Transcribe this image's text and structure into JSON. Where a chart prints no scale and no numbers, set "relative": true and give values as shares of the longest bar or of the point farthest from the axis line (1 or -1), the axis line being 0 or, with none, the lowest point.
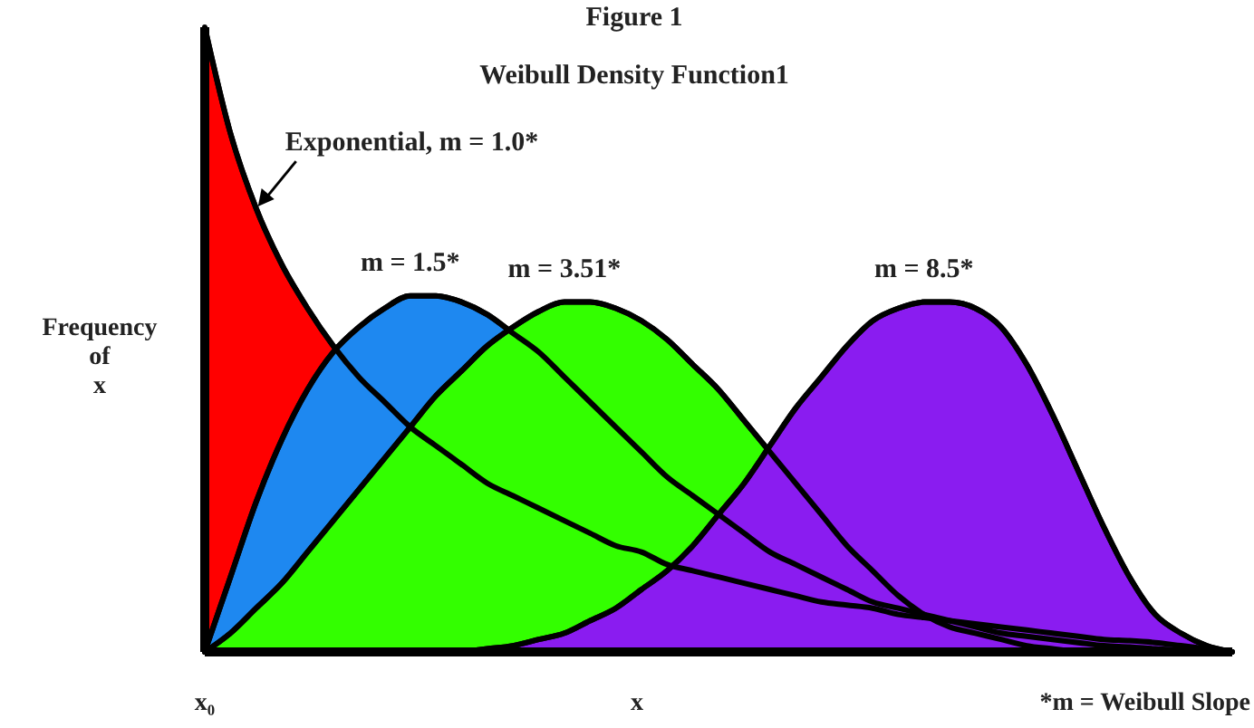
{
  "chart_data": {
    "type": "area",
    "title": "Figure 1",
    "subtitle": "Weibull Density Function1",
    "xlabel": "x",
    "ylabel": "Frequency of x",
    "relative": true,
    "categories": [
      null,
      null,
      null,
      null,
      null,
      null,
      null,
      null,
      null,
      null,
      null,
      null,
      null,
      null,
      null,
      null,
      null,
      null,
      null,
      null,
      null,
      null,
      null,
      null,
      null,
      null,
      null,
      null,
      null,
      null,
      null,
      null,
      null,
      null,
      null,
      null,
      null,
      null,
      null,
      null,
      null
    ],
    "series": [
      {
        "name": "Exponential, m = 1.0*",
        "color": "#ff0000",
        "values": [
          1.0,
          0.83,
          0.71,
          0.62,
          0.55,
          0.49,
          0.44,
          0.4,
          0.36,
          0.33,
          0.3,
          0.27,
          0.25,
          0.23,
          0.21,
          0.19,
          0.17,
          0.16,
          0.14,
          0.13,
          0.12,
          0.11,
          0.1,
          0.09,
          0.08,
          0.075,
          0.07,
          0.06,
          0.055,
          0.05,
          0.045,
          0.04,
          0.035,
          0.03,
          0.025,
          0.02,
          0.018,
          0.015,
          0.01,
          0.005,
          0
        ]
      },
      {
        "name": "m = 1.5*",
        "color": "#1e88f0",
        "values": [
          0,
          0.12,
          0.24,
          0.34,
          0.42,
          0.48,
          0.52,
          0.55,
          0.57,
          0.57,
          0.56,
          0.54,
          0.51,
          0.48,
          0.44,
          0.4,
          0.36,
          0.32,
          0.28,
          0.25,
          0.22,
          0.19,
          0.16,
          0.14,
          0.12,
          0.1,
          0.08,
          0.07,
          0.06,
          0.05,
          0.04,
          0.03,
          0.025,
          0.02,
          0.015,
          0.01,
          0.008,
          0.005,
          0.003,
          0.001,
          0
        ]
      },
      {
        "name": "m = 3.51*",
        "color": "#33ff00",
        "values": [
          0,
          0.03,
          0.07,
          0.11,
          0.16,
          0.21,
          0.26,
          0.31,
          0.36,
          0.41,
          0.45,
          0.49,
          0.52,
          0.545,
          0.56,
          0.56,
          0.55,
          0.53,
          0.5,
          0.46,
          0.42,
          0.37,
          0.32,
          0.27,
          0.22,
          0.17,
          0.13,
          0.09,
          0.06,
          0.04,
          0.03,
          0.02,
          0.01,
          0.005,
          0,
          null,
          null,
          null,
          null,
          null,
          null
        ]
      },
      {
        "name": "m = 8.5*",
        "color": "#8a1cf0",
        "values": [
          null,
          null,
          null,
          null,
          null,
          null,
          null,
          null,
          null,
          null,
          0,
          0.005,
          0.01,
          0.02,
          0.03,
          0.05,
          0.07,
          0.1,
          0.13,
          0.17,
          0.22,
          0.27,
          0.33,
          0.39,
          0.44,
          0.49,
          0.53,
          0.55,
          0.56,
          0.56,
          0.55,
          0.52,
          0.46,
          0.38,
          0.29,
          0.2,
          0.12,
          0.06,
          0.03,
          0.01,
          0
        ]
      }
    ],
    "annotations": [
      "x₀",
      "*m = Weibull Slope"
    ]
  }
}
